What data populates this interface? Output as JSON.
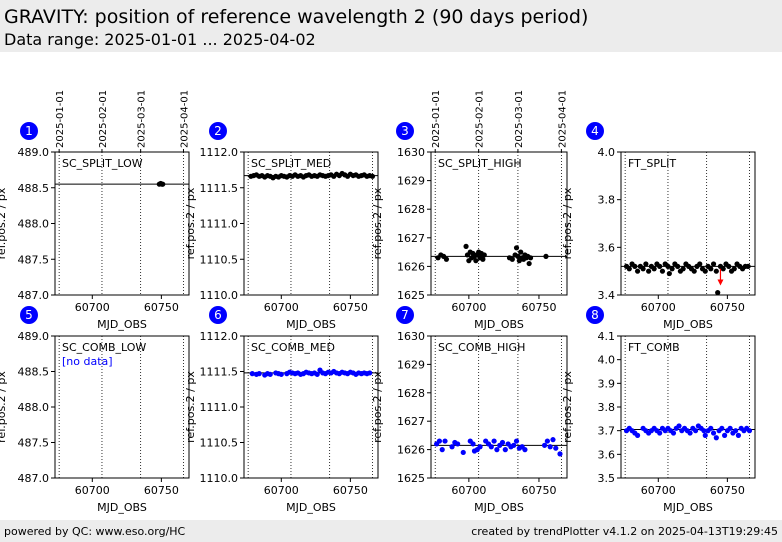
{
  "header": {
    "title": "GRAVITY: position of reference wavelength 2 (90 days period)",
    "subtitle": "Data range: 2025-01-01 ... 2025-04-02"
  },
  "footer": {
    "left": "powered by QC: www.eso.org/HC",
    "right": "created by trendPlotter v4.1.2 on 2025-04-13T19:29:45"
  },
  "date_ticks": {
    "labels": [
      "2025-01-01",
      "2025-02-01",
      "2025-03-01",
      "2025-04-01"
    ],
    "mjd": [
      60676,
      60707,
      60735,
      60766
    ]
  },
  "colors": {
    "black": "#000000",
    "blue": "#0000ff",
    "red": "#ff0000",
    "badge": "#0000ff"
  },
  "chart_data": [
    {
      "panel": "1",
      "type": "scatter",
      "label": "SC_SPLIT_LOW",
      "xlabel": "MJD_OBS",
      "ylabel": "ref.pos.2 / px",
      "xlim": [
        60673,
        60770
      ],
      "ylim": [
        487.0,
        489.0
      ],
      "xticks": [
        60700,
        60750
      ],
      "yticks": [
        487.0,
        487.5,
        488.0,
        488.5,
        489.0
      ],
      "ytick_labels": [
        "487.0",
        "487.5",
        "488.0",
        "488.5",
        "489.0"
      ],
      "ref_line": 488.55,
      "point_color": "black",
      "points": [
        [
          60748.5,
          488.55
        ],
        [
          60749.5,
          488.56
        ],
        [
          60750.5,
          488.55
        ],
        [
          60751.0,
          488.55
        ]
      ],
      "annotation": ""
    },
    {
      "panel": "2",
      "type": "scatter",
      "label": "SC_SPLIT_MED",
      "xlabel": "MJD_OBS",
      "ylabel": "ref.pos.2 / px",
      "xlim": [
        60673,
        60770
      ],
      "ylim": [
        1110.0,
        1112.0
      ],
      "xticks": [
        60700,
        60750
      ],
      "yticks": [
        1110.0,
        1110.5,
        1111.0,
        1111.5,
        1112.0
      ],
      "ytick_labels": [
        "1110.0",
        "1110.5",
        "1111.0",
        "1111.5",
        "1112.0"
      ],
      "ref_line": 1111.67,
      "point_color": "black",
      "points": [
        [
          60678,
          1111.66
        ],
        [
          60680,
          1111.67
        ],
        [
          60682,
          1111.68
        ],
        [
          60684,
          1111.66
        ],
        [
          60686,
          1111.67
        ],
        [
          60688,
          1111.65
        ],
        [
          60690,
          1111.67
        ],
        [
          60692,
          1111.66
        ],
        [
          60694,
          1111.64
        ],
        [
          60696,
          1111.66
        ],
        [
          60698,
          1111.65
        ],
        [
          60700,
          1111.67
        ],
        [
          60702,
          1111.66
        ],
        [
          60704,
          1111.65
        ],
        [
          60706,
          1111.67
        ],
        [
          60708,
          1111.66
        ],
        [
          60710,
          1111.68
        ],
        [
          60712,
          1111.66
        ],
        [
          60714,
          1111.67
        ],
        [
          60716,
          1111.65
        ],
        [
          60718,
          1111.67
        ],
        [
          60720,
          1111.68
        ],
        [
          60722,
          1111.66
        ],
        [
          60724,
          1111.67
        ],
        [
          60726,
          1111.66
        ],
        [
          60728,
          1111.68
        ],
        [
          60730,
          1111.67
        ],
        [
          60732,
          1111.66
        ],
        [
          60734,
          1111.67
        ],
        [
          60736,
          1111.68
        ],
        [
          60738,
          1111.66
        ],
        [
          60740,
          1111.69
        ],
        [
          60742,
          1111.67
        ],
        [
          60744,
          1111.7
        ],
        [
          60746,
          1111.68
        ],
        [
          60748,
          1111.66
        ],
        [
          60750,
          1111.69
        ],
        [
          60752,
          1111.67
        ],
        [
          60754,
          1111.68
        ],
        [
          60756,
          1111.66
        ],
        [
          60758,
          1111.67
        ],
        [
          60760,
          1111.68
        ],
        [
          60762,
          1111.66
        ],
        [
          60764,
          1111.67
        ],
        [
          60766,
          1111.66
        ]
      ],
      "annotation": ""
    },
    {
      "panel": "3",
      "type": "scatter",
      "label": "SC_SPLIT_HIGH",
      "xlabel": "MJD_OBS",
      "ylabel": "ref.pos.2 / px",
      "xlim": [
        60673,
        60770
      ],
      "ylim": [
        1625,
        1630
      ],
      "xticks": [
        60700,
        60750
      ],
      "yticks": [
        1625,
        1626,
        1627,
        1628,
        1629,
        1630
      ],
      "ytick_labels": [
        "1625",
        "1626",
        "1627",
        "1628",
        "1629",
        "1630"
      ],
      "ref_line": 1626.35,
      "point_color": "black",
      "points": [
        [
          60678,
          1626.3
        ],
        [
          60680,
          1626.4
        ],
        [
          60682,
          1626.35
        ],
        [
          60684,
          1626.25
        ],
        [
          60698,
          1626.7
        ],
        [
          60699,
          1626.4
        ],
        [
          60700,
          1626.2
        ],
        [
          60701,
          1626.5
        ],
        [
          60702,
          1626.3
        ],
        [
          60703,
          1626.45
        ],
        [
          60704,
          1626.35
        ],
        [
          60705,
          1626.2
        ],
        [
          60706,
          1626.4
        ],
        [
          60707,
          1626.5
        ],
        [
          60708,
          1626.3
        ],
        [
          60709,
          1626.45
        ],
        [
          60710,
          1626.25
        ],
        [
          60711,
          1626.4
        ],
        [
          60729,
          1626.3
        ],
        [
          60731,
          1626.25
        ],
        [
          60733,
          1626.4
        ],
        [
          60734,
          1626.65
        ],
        [
          60735,
          1626.35
        ],
        [
          60736,
          1626.2
        ],
        [
          60737,
          1626.5
        ],
        [
          60738,
          1626.3
        ],
        [
          60739,
          1626.25
        ],
        [
          60740,
          1626.4
        ],
        [
          60741,
          1626.3
        ],
        [
          60742,
          1626.35
        ],
        [
          60743,
          1626.1
        ],
        [
          60744,
          1626.3
        ],
        [
          60755,
          1626.35
        ]
      ],
      "annotation": ""
    },
    {
      "panel": "4",
      "type": "scatter",
      "label": "FT_SPLIT",
      "xlabel": "MJD_OBS",
      "ylabel": "ref.pos.2 / px",
      "xlim": [
        60673,
        60770
      ],
      "ylim": [
        3.4,
        4.0
      ],
      "xticks": [
        60700,
        60750
      ],
      "yticks": [
        3.4,
        3.6,
        3.8,
        4.0
      ],
      "ytick_labels": [
        "3.4",
        "3.6",
        "3.8",
        "4.0"
      ],
      "ref_line": 3.52,
      "point_color": "black",
      "points": [
        [
          60677,
          3.52
        ],
        [
          60679,
          3.51
        ],
        [
          60681,
          3.53
        ],
        [
          60683,
          3.52
        ],
        [
          60685,
          3.5
        ],
        [
          60687,
          3.52
        ],
        [
          60689,
          3.51
        ],
        [
          60691,
          3.53
        ],
        [
          60693,
          3.5
        ],
        [
          60695,
          3.52
        ],
        [
          60697,
          3.51
        ],
        [
          60699,
          3.53
        ],
        [
          60701,
          3.52
        ],
        [
          60703,
          3.5
        ],
        [
          60705,
          3.53
        ],
        [
          60707,
          3.52
        ],
        [
          60708,
          3.49
        ],
        [
          60710,
          3.51
        ],
        [
          60712,
          3.53
        ],
        [
          60714,
          3.52
        ],
        [
          60716,
          3.5
        ],
        [
          60718,
          3.51
        ],
        [
          60720,
          3.53
        ],
        [
          60722,
          3.52
        ],
        [
          60724,
          3.51
        ],
        [
          60726,
          3.5
        ],
        [
          60728,
          3.52
        ],
        [
          60730,
          3.53
        ],
        [
          60732,
          3.51
        ],
        [
          60734,
          3.5
        ],
        [
          60736,
          3.52
        ],
        [
          60738,
          3.51
        ],
        [
          60740,
          3.53
        ],
        [
          60742,
          3.5
        ],
        [
          60743,
          3.41
        ],
        [
          60745,
          3.52
        ],
        [
          60747,
          3.51
        ],
        [
          60749,
          3.53
        ],
        [
          60751,
          3.52
        ],
        [
          60753,
          3.5
        ],
        [
          60755,
          3.51
        ],
        [
          60757,
          3.53
        ],
        [
          60759,
          3.52
        ],
        [
          60761,
          3.51
        ],
        [
          60763,
          3.52
        ],
        [
          60765,
          3.52
        ]
      ],
      "outlier_arrow": {
        "x": 60745,
        "y_from": 3.51,
        "y_to": 3.44
      },
      "annotation": ""
    },
    {
      "panel": "5",
      "type": "scatter",
      "label": "SC_COMB_LOW",
      "xlabel": "MJD_OBS",
      "ylabel": "ref.pos.2 / px",
      "xlim": [
        60673,
        60770
      ],
      "ylim": [
        487.0,
        489.0
      ],
      "xticks": [
        60700,
        60750
      ],
      "yticks": [
        487.0,
        487.5,
        488.0,
        488.5,
        489.0
      ],
      "ytick_labels": [
        "487.0",
        "487.5",
        "488.0",
        "488.5",
        "489.0"
      ],
      "ref_line": null,
      "point_color": "blue",
      "points": [],
      "annotation": "[no data]"
    },
    {
      "panel": "6",
      "type": "scatter",
      "label": "SC_COMB_MED",
      "xlabel": "MJD_OBS",
      "ylabel": "ref.pos.2 / px",
      "xlim": [
        60673,
        60770
      ],
      "ylim": [
        1110.0,
        1112.0
      ],
      "xticks": [
        60700,
        60750
      ],
      "yticks": [
        1110.0,
        1110.5,
        1111.0,
        1111.5,
        1112.0
      ],
      "ytick_labels": [
        "1110.0",
        "1110.5",
        "1111.0",
        "1111.5",
        "1112.0"
      ],
      "ref_line": 1111.48,
      "point_color": "blue",
      "points": [
        [
          60679,
          1111.47
        ],
        [
          60682,
          1111.46
        ],
        [
          60684,
          1111.47
        ],
        [
          60688,
          1111.45
        ],
        [
          60690,
          1111.47
        ],
        [
          60692,
          1111.46
        ],
        [
          60696,
          1111.48
        ],
        [
          60698,
          1111.47
        ],
        [
          60700,
          1111.46
        ],
        [
          60704,
          1111.47
        ],
        [
          60706,
          1111.49
        ],
        [
          60708,
          1111.48
        ],
        [
          60710,
          1111.47
        ],
        [
          60712,
          1111.48
        ],
        [
          60714,
          1111.46
        ],
        [
          60716,
          1111.47
        ],
        [
          60718,
          1111.49
        ],
        [
          60720,
          1111.48
        ],
        [
          60722,
          1111.47
        ],
        [
          60724,
          1111.48
        ],
        [
          60726,
          1111.46
        ],
        [
          60728,
          1111.52
        ],
        [
          60730,
          1111.48
        ],
        [
          60732,
          1111.47
        ],
        [
          60734,
          1111.49
        ],
        [
          60736,
          1111.48
        ],
        [
          60738,
          1111.5
        ],
        [
          60740,
          1111.48
        ],
        [
          60742,
          1111.47
        ],
        [
          60744,
          1111.49
        ],
        [
          60746,
          1111.48
        ],
        [
          60748,
          1111.47
        ],
        [
          60750,
          1111.49
        ],
        [
          60752,
          1111.48
        ],
        [
          60754,
          1111.46
        ],
        [
          60756,
          1111.48
        ],
        [
          60758,
          1111.47
        ],
        [
          60760,
          1111.48
        ],
        [
          60762,
          1111.47
        ],
        [
          60764,
          1111.48
        ]
      ],
      "annotation": ""
    },
    {
      "panel": "7",
      "type": "scatter",
      "label": "SC_COMB_HIGH",
      "xlabel": "MJD_OBS",
      "ylabel": "ref.pos.2 / px",
      "xlim": [
        60673,
        60770
      ],
      "ylim": [
        1625,
        1630
      ],
      "xticks": [
        60700,
        60750
      ],
      "yticks": [
        1625,
        1626,
        1627,
        1628,
        1629,
        1630
      ],
      "ytick_labels": [
        "1625",
        "1626",
        "1627",
        "1628",
        "1629",
        "1630"
      ],
      "ref_line": 1626.15,
      "point_color": "blue",
      "points": [
        [
          60677,
          1626.2
        ],
        [
          60679,
          1626.3
        ],
        [
          60681,
          1626.0
        ],
        [
          60683,
          1626.3
        ],
        [
          60688,
          1626.1
        ],
        [
          60690,
          1626.25
        ],
        [
          60692,
          1626.2
        ],
        [
          60696,
          1625.9
        ],
        [
          60701,
          1626.3
        ],
        [
          60703,
          1626.2
        ],
        [
          60704,
          1625.95
        ],
        [
          60706,
          1626.0
        ],
        [
          60708,
          1626.1
        ],
        [
          60712,
          1626.3
        ],
        [
          60714,
          1626.2
        ],
        [
          60716,
          1626.1
        ],
        [
          60718,
          1626.3
        ],
        [
          60720,
          1626.0
        ],
        [
          60722,
          1626.15
        ],
        [
          60724,
          1626.25
        ],
        [
          60726,
          1626.0
        ],
        [
          60728,
          1626.2
        ],
        [
          60730,
          1626.1
        ],
        [
          60732,
          1626.15
        ],
        [
          60734,
          1626.3
        ],
        [
          60736,
          1626.05
        ],
        [
          60738,
          1626.1
        ],
        [
          60740,
          1626.0
        ],
        [
          60754,
          1626.15
        ],
        [
          60756,
          1626.3
        ],
        [
          60758,
          1626.1
        ],
        [
          60760,
          1626.35
        ],
        [
          60762,
          1626.05
        ],
        [
          60765,
          1625.85
        ]
      ],
      "annotation": ""
    },
    {
      "panel": "8",
      "type": "scatter",
      "label": "FT_COMB",
      "xlabel": "MJD_OBS",
      "ylabel": "ref.pos.2 / px",
      "xlim": [
        60673,
        60770
      ],
      "ylim": [
        3.5,
        4.1
      ],
      "xticks": [
        60700,
        60750
      ],
      "yticks": [
        3.5,
        3.6,
        3.7,
        3.8,
        3.9,
        4.0,
        4.1
      ],
      "ytick_labels": [
        "3.5",
        "3.6",
        "3.7",
        "3.8",
        "3.9",
        "4.0",
        "4.1"
      ],
      "ref_line": 3.705,
      "point_color": "blue",
      "points": [
        [
          60677,
          3.7
        ],
        [
          60679,
          3.71
        ],
        [
          60681,
          3.7
        ],
        [
          60683,
          3.69
        ],
        [
          60685,
          3.68
        ],
        [
          60689,
          3.71
        ],
        [
          60691,
          3.7
        ],
        [
          60693,
          3.69
        ],
        [
          60695,
          3.7
        ],
        [
          60697,
          3.71
        ],
        [
          60699,
          3.7
        ],
        [
          60701,
          3.69
        ],
        [
          60703,
          3.71
        ],
        [
          60705,
          3.7
        ],
        [
          60707,
          3.71
        ],
        [
          60709,
          3.7
        ],
        [
          60711,
          3.69
        ],
        [
          60713,
          3.71
        ],
        [
          60715,
          3.72
        ],
        [
          60717,
          3.7
        ],
        [
          60719,
          3.71
        ],
        [
          60721,
          3.7
        ],
        [
          60723,
          3.69
        ],
        [
          60725,
          3.71
        ],
        [
          60727,
          3.7
        ],
        [
          60729,
          3.72
        ],
        [
          60731,
          3.71
        ],
        [
          60733,
          3.7
        ],
        [
          60734,
          3.68
        ],
        [
          60736,
          3.7
        ],
        [
          60738,
          3.71
        ],
        [
          60740,
          3.69
        ],
        [
          60742,
          3.67
        ],
        [
          60744,
          3.7
        ],
        [
          60746,
          3.71
        ],
        [
          60748,
          3.68
        ],
        [
          60750,
          3.7
        ],
        [
          60752,
          3.71
        ],
        [
          60754,
          3.69
        ],
        [
          60756,
          3.7
        ],
        [
          60758,
          3.68
        ],
        [
          60760,
          3.71
        ],
        [
          60762,
          3.7
        ],
        [
          60764,
          3.71
        ],
        [
          60766,
          3.7
        ]
      ],
      "annotation": ""
    }
  ]
}
